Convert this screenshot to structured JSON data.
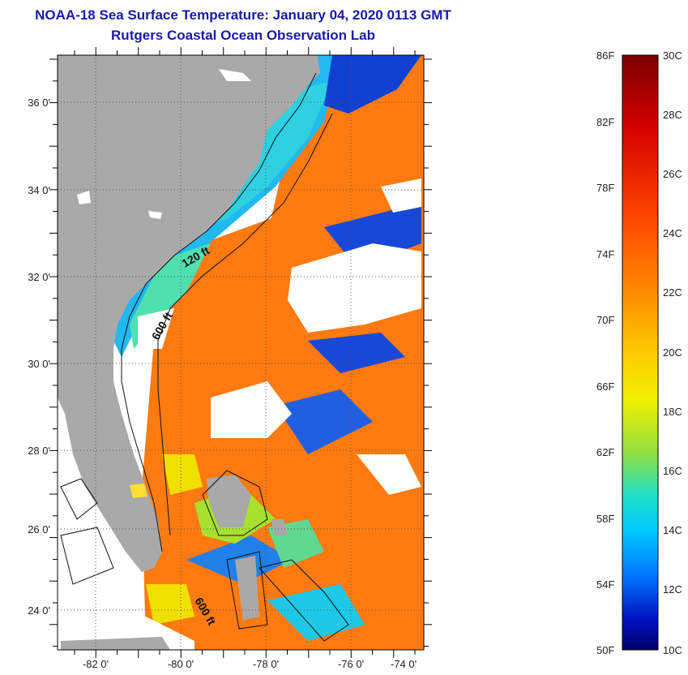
{
  "title": {
    "line1": "NOAA-18 Sea Surface Temperature:  January 04, 2020 0113 GMT",
    "line2": "Rutgers Coastal Ocean Observation Lab"
  },
  "map": {
    "lat_labels": [
      "36 0'",
      "34 0'",
      "32 0'",
      "30 0'",
      "28 0'",
      "26 0'",
      "24 0'"
    ],
    "lon_labels": [
      "-82 0'",
      "-80 0'",
      "-78 0'",
      "-76 0'",
      "-74 0'"
    ],
    "contours": [
      "120 ft",
      "600 ft",
      "600 ft"
    ]
  },
  "colorbar": {
    "fahrenheit": [
      "86F",
      "82F",
      "78F",
      "74F",
      "70F",
      "66F",
      "62F",
      "58F",
      "54F",
      "50F"
    ],
    "celsius": [
      "30C",
      "28C",
      "26C",
      "24C",
      "22C",
      "20C",
      "18C",
      "16C",
      "14C",
      "12C",
      "10C"
    ],
    "colors": [
      "#7a0000",
      "#d40000",
      "#ff4a00",
      "#ff8c00",
      "#ffcc00",
      "#f0f000",
      "#90e040",
      "#20e0c8",
      "#00c8ff",
      "#0070ff",
      "#0010c0",
      "#00006a"
    ]
  }
}
